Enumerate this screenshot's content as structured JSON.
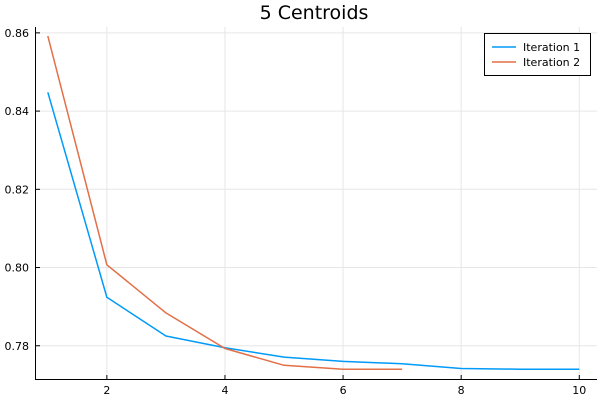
{
  "chart_data": {
    "type": "line",
    "title": "5 Centroids",
    "xlabel": "",
    "ylabel": "",
    "xlim": [
      0.8,
      10.3
    ],
    "ylim": [
      0.7715,
      0.8615
    ],
    "x_ticks": [
      2,
      4,
      6,
      8,
      10
    ],
    "x_tick_labels": [
      "2",
      "4",
      "6",
      "8",
      "10"
    ],
    "y_ticks": [
      0.78,
      0.8,
      0.82,
      0.84,
      0.86
    ],
    "y_tick_labels": [
      "0.78",
      "0.80",
      "0.82",
      "0.84",
      "0.86"
    ],
    "grid": true,
    "legend_position": "top-right",
    "series": [
      {
        "name": "Iteration 1",
        "color": "#009af9",
        "x": [
          1,
          2,
          3,
          4,
          5,
          6,
          7,
          8,
          9,
          10
        ],
        "values": [
          0.8448,
          0.7924,
          0.7825,
          0.7795,
          0.7771,
          0.776,
          0.7754,
          0.7742,
          0.774,
          0.774
        ]
      },
      {
        "name": "Iteration 2",
        "color": "#e26f46",
        "x": [
          1,
          2,
          3,
          4,
          5,
          6,
          7
        ],
        "values": [
          0.8592,
          0.8007,
          0.7884,
          0.7793,
          0.775,
          0.774,
          0.774
        ]
      }
    ]
  }
}
